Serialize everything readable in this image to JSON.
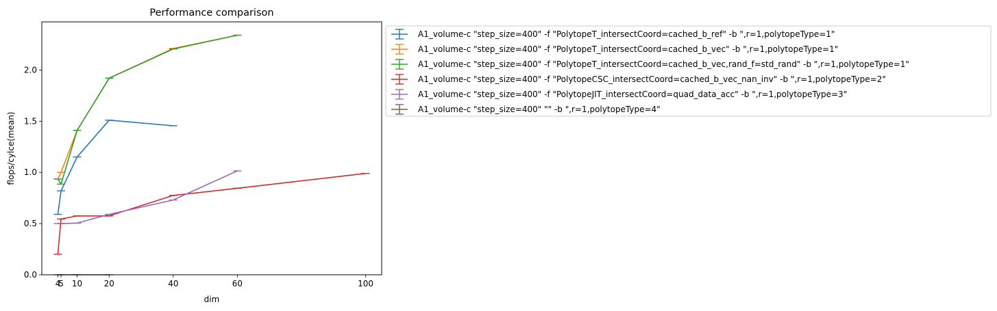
{
  "chart_data": {
    "type": "line",
    "title": "Performance comparison",
    "xlabel": "dim",
    "ylabel": "flops/cylce(mean)",
    "xlim": [
      -1,
      105
    ],
    "ylim": [
      0,
      2.47
    ],
    "xticks": [
      4,
      5,
      10,
      20,
      40,
      60,
      100
    ],
    "yticks": [
      0.0,
      0.5,
      1.0,
      1.5,
      2.0
    ],
    "ytick_labels": [
      "0.0",
      "0.5",
      "1.0",
      "1.5",
      "2.0"
    ],
    "grid": false,
    "error_bars": true,
    "legend_position": "outside-upper-right",
    "series": [
      {
        "name": "A1_volume-c \"step_size=400\" -f \"PolytopeT_intersectCoord=cached_b_ref\" -b \",r=1,polytopeType=1\"",
        "color": "#1f77b4",
        "x": [
          4,
          5,
          10,
          20,
          40
        ],
        "y": [
          0.59,
          0.82,
          1.15,
          1.51,
          1.455
        ]
      },
      {
        "name": "A1_volume-c \"step_size=400\" -f \"PolytopeT_intersectCoord=cached_b_vec\" -b \",r=1,polytopeType=1\"",
        "color": "#ff7f0e",
        "x": [
          4,
          5,
          10,
          20,
          40,
          60
        ],
        "y": [
          0.935,
          1.0,
          1.41,
          1.92,
          2.21,
          2.34
        ]
      },
      {
        "name": "A1_volume-c \"step_size=400\" -f \"PolytopeT_intersectCoord=cached_b_vec,rand_f=std_rand\" -b \",r=1,polytopeType=1\"",
        "color": "#2ca02c",
        "x": [
          4,
          5,
          10,
          20,
          40,
          60
        ],
        "y": [
          0.935,
          0.885,
          1.41,
          1.92,
          2.205,
          2.34
        ]
      },
      {
        "name": "A1_volume-c \"step_size=400\" -f \"PolytopeCSC_intersectCoord=cached_b_vec_nan_inv\" -b \",r=1,polytopeType=2\"",
        "color": "#d62728",
        "x": [
          4,
          5,
          10,
          20,
          40,
          60,
          100
        ],
        "y": [
          0.2,
          0.545,
          0.575,
          0.575,
          0.775,
          0.845,
          0.99
        ]
      },
      {
        "name": "A1_volume-c \"step_size=400\" -f \"PolytopeJIT_intersectCoord=quad_data_acc\" -b \",r=1,polytopeType=3\"",
        "color": "#9467bd",
        "x": [
          4,
          5,
          10,
          20,
          40,
          60
        ],
        "y": [
          0.5,
          0.5,
          0.505,
          0.59,
          0.73,
          1.015
        ]
      },
      {
        "name": "A1_volume-c \"step_size=400\"  \"\" -b \",r=1,polytopeType=4\"",
        "color": "#8c564b",
        "x": [
          4,
          5,
          10,
          20
        ],
        "y": [
          0.0,
          0.0,
          0.0,
          0.0
        ]
      }
    ]
  }
}
